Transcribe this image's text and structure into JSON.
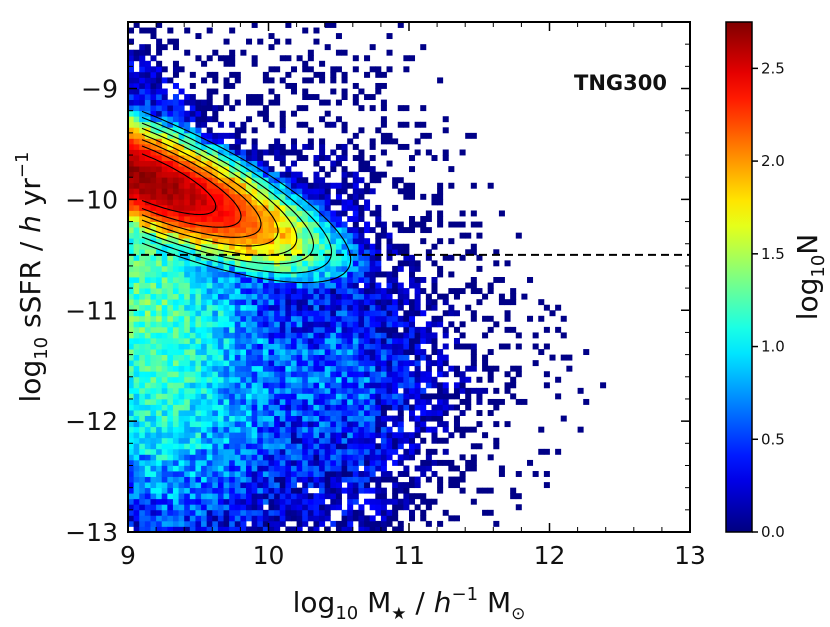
{
  "chart_data": {
    "type": "heatmap",
    "title": "",
    "annotation": "TNG300",
    "xlabel": {
      "prefix": "log",
      "sub": "10",
      "mid": " M",
      "star": "★",
      "sep": " / ",
      "h": "h",
      "sup": "−1",
      "tail": " M",
      "odot": "⊙"
    },
    "ylabel": {
      "prefix": "log",
      "sub": "10",
      "mid": " sSFR / ",
      "h": "h",
      "unit": " yr",
      "sup": "−1"
    },
    "xlim": [
      9,
      13
    ],
    "ylim": [
      -13,
      -8.4
    ],
    "xticks": [
      9,
      10,
      11,
      12,
      13
    ],
    "yticks": [
      -13,
      -12,
      -11,
      -10,
      -9
    ],
    "x_tick_labels": [
      "9",
      "10",
      "11",
      "12",
      "13"
    ],
    "y_tick_labels": [
      "−13",
      "−12",
      "−11",
      "−10",
      "−9"
    ],
    "threshold_line": {
      "y": -10.5,
      "style": "dashed"
    },
    "colorbar": {
      "label": {
        "prefix": "log",
        "sub": "10",
        "tail": "N"
      },
      "range": [
        0,
        2.75
      ],
      "ticks": [
        0.0,
        0.5,
        1.0,
        1.5,
        2.0,
        2.5
      ],
      "tick_labels": [
        "0.0",
        "0.5",
        "1.0",
        "1.5",
        "2.0",
        "2.5"
      ],
      "colormap": "jet"
    },
    "density_model": {
      "peak_log10N": 2.7,
      "peak": {
        "x": 9.1,
        "y": -9.8
      },
      "ridge_slope": -0.5,
      "x_scale_main": 1.05,
      "y_scale_main": 0.42,
      "bin_size_x": 0.04,
      "bin_size_y": 0.05
    },
    "contour_levels": [
      0.7,
      1.05,
      1.35,
      1.6,
      1.85,
      2.05,
      2.25,
      2.45
    ],
    "colors": {
      "line": "#000000",
      "frame": "#000000",
      "background": "#ffffff"
    }
  }
}
